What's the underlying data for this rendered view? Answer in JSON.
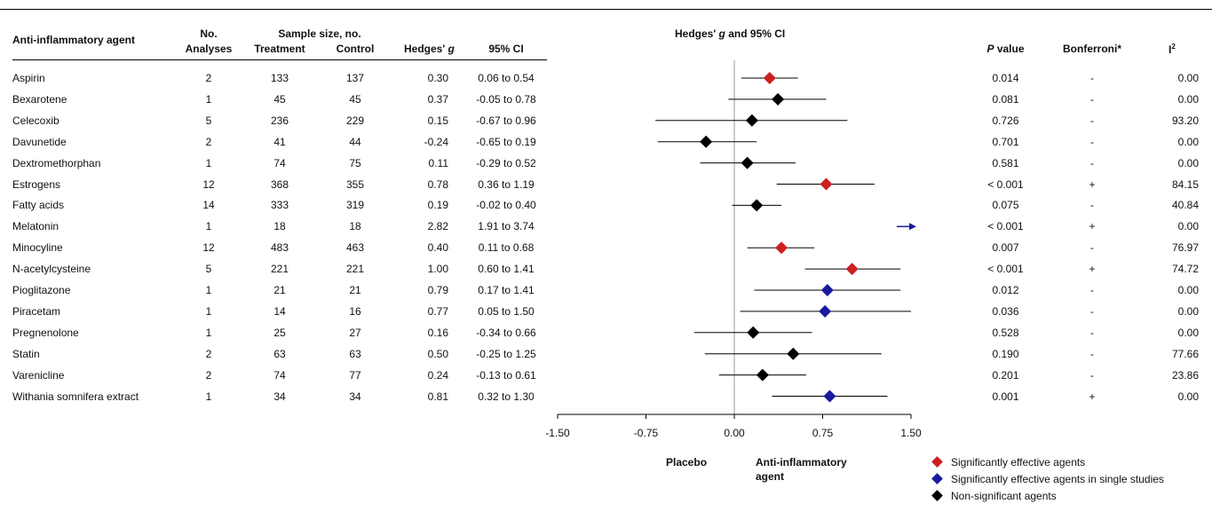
{
  "headers": {
    "agent": "Anti-inflammatory agent",
    "no_line1": "No.",
    "no_line2": "Analyses",
    "sample_size": "Sample size, no.",
    "treatment": "Treatment",
    "control": "Control",
    "hedges_prefix": "Hedges'",
    "hedges_g": "g",
    "ci": "95% CI",
    "forest_prefix": "Hedges'",
    "forest_g": "g",
    "forest_suffix": "and 95% CI",
    "p_italic": "P",
    "p_suffix": "value",
    "bonferroni": "Bonferroni*",
    "i2_base": "I",
    "i2_sup": "2"
  },
  "rows": [
    {
      "agent": "Aspirin",
      "analyses": "2",
      "treatment": "133",
      "control": "137",
      "g": "0.30",
      "ci": "0.06 to 0.54",
      "p": "0.014",
      "bonferroni": "-",
      "i2": "0.00"
    },
    {
      "agent": "Bexarotene",
      "analyses": "1",
      "treatment": "45",
      "control": "45",
      "g": "0.37",
      "ci": "-0.05 to 0.78",
      "p": "0.081",
      "bonferroni": "-",
      "i2": "0.00"
    },
    {
      "agent": "Celecoxib",
      "analyses": "5",
      "treatment": "236",
      "control": "229",
      "g": "0.15",
      "ci": "-0.67 to 0.96",
      "p": "0.726",
      "bonferroni": "-",
      "i2": "93.20"
    },
    {
      "agent": "Davunetide",
      "analyses": "2",
      "treatment": "41",
      "control": "44",
      "g": "-0.24",
      "ci": "-0.65 to 0.19",
      "p": "0.701",
      "bonferroni": "-",
      "i2": "0.00"
    },
    {
      "agent": "Dextromethorphan",
      "analyses": "1",
      "treatment": "74",
      "control": "75",
      "g": "0.11",
      "ci": "-0.29 to 0.52",
      "p": "0.581",
      "bonferroni": "-",
      "i2": "0.00"
    },
    {
      "agent": "Estrogens",
      "analyses": "12",
      "treatment": "368",
      "control": "355",
      "g": "0.78",
      "ci": "0.36 to 1.19",
      "p": "< 0.001",
      "bonferroni": "+",
      "i2": "84.15"
    },
    {
      "agent": "Fatty acids",
      "analyses": "14",
      "treatment": "333",
      "control": "319",
      "g": "0.19",
      "ci": "-0.02 to 0.40",
      "p": "0.075",
      "bonferroni": "-",
      "i2": "40.84"
    },
    {
      "agent": "Melatonin",
      "analyses": "1",
      "treatment": "18",
      "control": "18",
      "g": "2.82",
      "ci": "1.91 to 3.74",
      "p": "< 0.001",
      "bonferroni": "+",
      "i2": "0.00"
    },
    {
      "agent": "Minocyline",
      "analyses": "12",
      "treatment": "483",
      "control": "463",
      "g": "0.40",
      "ci": "0.11 to 0.68",
      "p": "0.007",
      "bonferroni": "-",
      "i2": "76.97"
    },
    {
      "agent": "N-acetylcysteine",
      "analyses": "5",
      "treatment": "221",
      "control": "221",
      "g": "1.00",
      "ci": "0.60 to 1.41",
      "p": "< 0.001",
      "bonferroni": "+",
      "i2": "74.72"
    },
    {
      "agent": "Pioglitazone",
      "analyses": "1",
      "treatment": "21",
      "control": "21",
      "g": "0.79",
      "ci": "0.17 to 1.41",
      "p": "0.012",
      "bonferroni": "-",
      "i2": "0.00"
    },
    {
      "agent": "Piracetam",
      "analyses": "1",
      "treatment": "14",
      "control": "16",
      "g": "0.77",
      "ci": "0.05 to 1.50",
      "p": "0.036",
      "bonferroni": "-",
      "i2": "0.00"
    },
    {
      "agent": "Pregnenolone",
      "analyses": "1",
      "treatment": "25",
      "control": "27",
      "g": "0.16",
      "ci": "-0.34 to 0.66",
      "p": "0.528",
      "bonferroni": "-",
      "i2": "0.00"
    },
    {
      "agent": "Statin",
      "analyses": "2",
      "treatment": "63",
      "control": "63",
      "g": "0.50",
      "ci": "-0.25 to 1.25",
      "p": "0.190",
      "bonferroni": "-",
      "i2": "77.66"
    },
    {
      "agent": "Varenicline",
      "analyses": "2",
      "treatment": "74",
      "control": "77",
      "g": "0.24",
      "ci": "-0.13 to 0.61",
      "p": "0.201",
      "bonferroni": "-",
      "i2": "23.86"
    },
    {
      "agent": "Withania somnifera extract",
      "analyses": "1",
      "treatment": "34",
      "control": "34",
      "g": "0.81",
      "ci": "0.32 to 1.30",
      "p": "0.001",
      "bonferroni": "+",
      "i2": "0.00"
    }
  ],
  "axis_labels": {
    "left": "Placebo",
    "right_line1": "Anti-inflammatory",
    "right_line2": "agent"
  },
  "legend": [
    {
      "label": "Significantly effective agents",
      "color": "#cc1f1f"
    },
    {
      "label": "Significantly effective agents in single studies",
      "color": "#1a1a9c"
    },
    {
      "label": "Non-significant agents",
      "color": "#000000"
    }
  ],
  "chart_data": {
    "type": "forest",
    "x_range": [
      -1.5,
      1.5
    ],
    "x_ticks": [
      -1.5,
      -0.75,
      0,
      0.75,
      1.5
    ],
    "x_tick_labels": [
      "-1.50",
      "-0.75",
      "0.00",
      "0.75",
      "1.50"
    ],
    "reference_line": 0,
    "colors": {
      "sig": "#cc1f1f",
      "single": "#1a1a9c",
      "ns": "#000000"
    },
    "points": [
      {
        "agent": "Aspirin",
        "g": 0.3,
        "lo": 0.06,
        "hi": 0.54,
        "category": "sig"
      },
      {
        "agent": "Bexarotene",
        "g": 0.37,
        "lo": -0.05,
        "hi": 0.78,
        "category": "ns"
      },
      {
        "agent": "Celecoxib",
        "g": 0.15,
        "lo": -0.67,
        "hi": 0.96,
        "category": "ns"
      },
      {
        "agent": "Davunetide",
        "g": -0.24,
        "lo": -0.65,
        "hi": 0.19,
        "category": "ns"
      },
      {
        "agent": "Dextromethorphan",
        "g": 0.11,
        "lo": -0.29,
        "hi": 0.52,
        "category": "ns"
      },
      {
        "agent": "Estrogens",
        "g": 0.78,
        "lo": 0.36,
        "hi": 1.19,
        "category": "sig"
      },
      {
        "agent": "Fatty acids",
        "g": 0.19,
        "lo": -0.02,
        "hi": 0.4,
        "category": "ns"
      },
      {
        "agent": "Melatonin",
        "g": 2.82,
        "lo": 1.91,
        "hi": 3.74,
        "category": "single",
        "off_scale": true
      },
      {
        "agent": "Minocyline",
        "g": 0.4,
        "lo": 0.11,
        "hi": 0.68,
        "category": "sig"
      },
      {
        "agent": "N-acetylcysteine",
        "g": 1.0,
        "lo": 0.6,
        "hi": 1.41,
        "category": "sig"
      },
      {
        "agent": "Pioglitazone",
        "g": 0.79,
        "lo": 0.17,
        "hi": 1.41,
        "category": "single"
      },
      {
        "agent": "Piracetam",
        "g": 0.77,
        "lo": 0.05,
        "hi": 1.5,
        "category": "single"
      },
      {
        "agent": "Pregnenolone",
        "g": 0.16,
        "lo": -0.34,
        "hi": 0.66,
        "category": "ns"
      },
      {
        "agent": "Statin",
        "g": 0.5,
        "lo": -0.25,
        "hi": 1.25,
        "category": "ns"
      },
      {
        "agent": "Varenicline",
        "g": 0.24,
        "lo": -0.13,
        "hi": 0.61,
        "category": "ns"
      },
      {
        "agent": "Withania somnifera extract",
        "g": 0.81,
        "lo": 0.32,
        "hi": 1.3,
        "category": "single"
      }
    ]
  }
}
